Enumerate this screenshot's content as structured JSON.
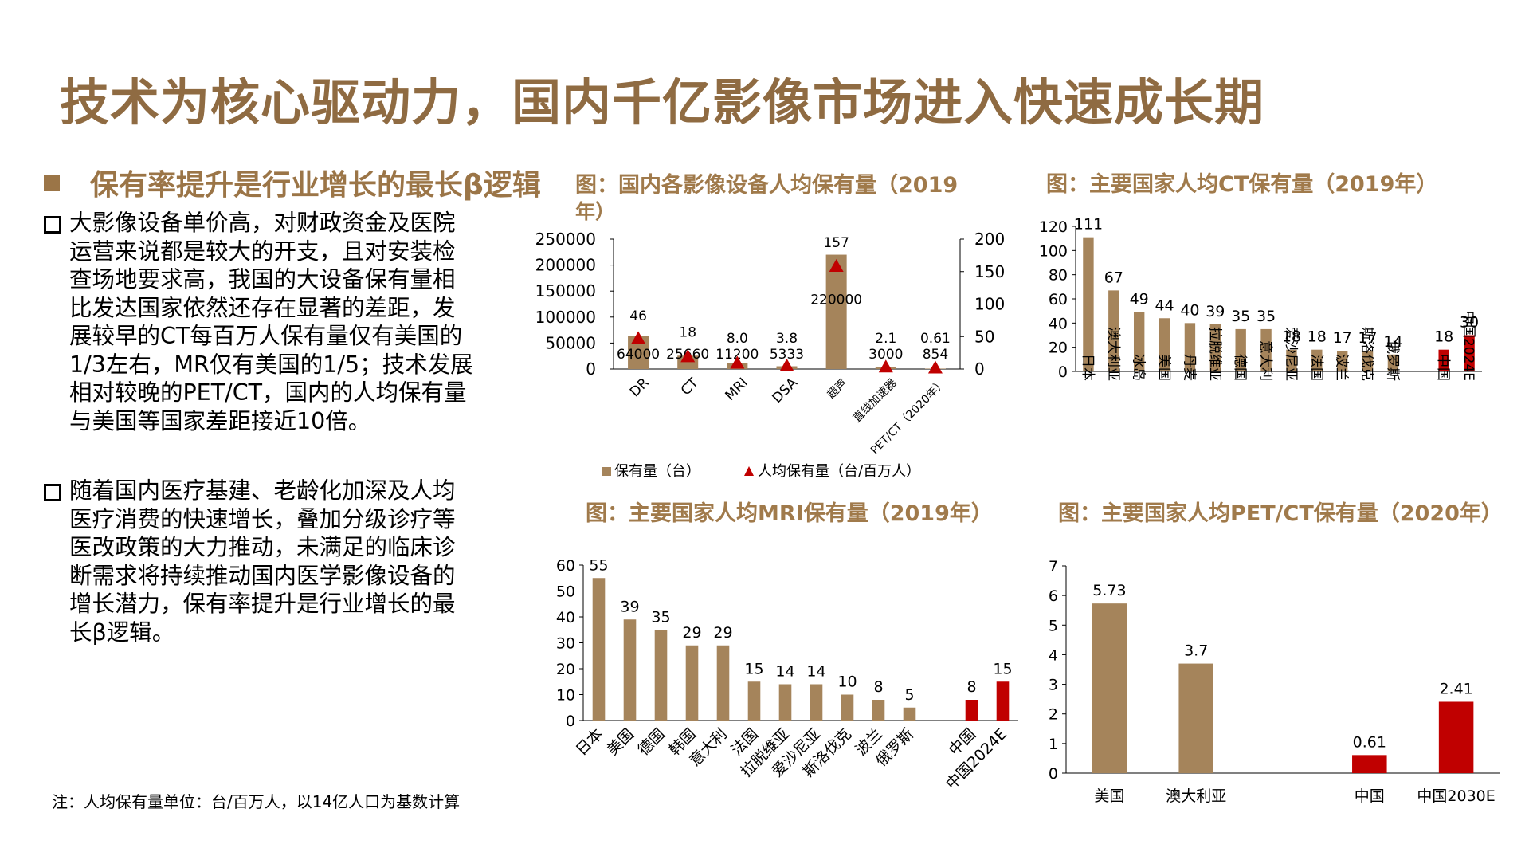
{
  "title": "技术为核心驱动力，国内千亿影像市场进入快速成长期",
  "subheading": "保有率提升是行业增长的最长β逻辑",
  "bullets": [
    "大影像设备单价高，对财政资金及医院运营来说都是较大的开支，且对安装检查场地要求高，我国的大设备保有量相比发达国家依然还存在显著的差距，发展较早的CT每百万人保有量仅有美国的1/3左右，MR仅有美国的1/5；技术发展相对较晚的PET/CT，国内的人均保有量与美国等国家差距接近10倍。",
    "随着国内医疗基建、老龄化加深及人均医疗消费的快速增长，叠加分级诊疗等医改政策的大力推动，未满足的临床诊断需求将持续推动国内医学影像设备的增长潜力，保有率提升是行业增长的最长β逻辑。"
  ],
  "note": "注：人均保有量单位：台/百万人，以14亿人口为基数计算",
  "colors": {
    "gold": "#a5845b",
    "red": "#c00000",
    "title": "#8f6b42"
  },
  "chart_data": [
    {
      "type": "bar",
      "title": "图：国内各影像设备人均保有量（2019年）",
      "categories": [
        "DR",
        "CT",
        "MRI",
        "DSA",
        "超声",
        "直线加速器",
        "PET/CT（2020年）"
      ],
      "series": [
        {
          "name": "保有量（台）",
          "type": "bar",
          "axis": "left",
          "values": [
            64000,
            25660,
            11200,
            5333,
            220000,
            3000,
            854
          ],
          "labels": [
            "64000",
            "25660",
            "11200",
            "5333",
            "220000",
            "3000",
            "854"
          ]
        },
        {
          "name": "人均保有量（台/百万人）",
          "type": "scatter",
          "marker": "triangle",
          "axis": "right",
          "values": [
            46,
            18,
            8.0,
            3.8,
            157,
            2.1,
            0.61
          ],
          "labels": [
            "46",
            "18",
            "8.0",
            "3.8",
            "157",
            "2.1",
            "0.61"
          ]
        }
      ],
      "ylim": [
        0,
        250000
      ],
      "yticks": [
        "0",
        "50000",
        "100000",
        "150000",
        "200000",
        "250000"
      ],
      "y2lim": [
        0,
        200
      ],
      "y2ticks": [
        "0",
        "50",
        "100",
        "150",
        "200"
      ],
      "legend": "bottom"
    },
    {
      "type": "bar",
      "title": "图：主要国家人均CT保有量（2019年）",
      "categories": [
        "日本",
        "澳大利亚",
        "冰岛",
        "美国",
        "丹麦",
        "拉脱维亚",
        "德国",
        "意大利",
        "爱沙尼亚",
        "法国",
        "波兰",
        "斯洛伐克",
        "俄罗斯",
        "中国",
        "中国2024E"
      ],
      "values": [
        111,
        67,
        49,
        44,
        40,
        39,
        35,
        35,
        18,
        18,
        17,
        17,
        14,
        18,
        30
      ],
      "labels": [
        "111",
        "67",
        "49",
        "44",
        "40",
        "39",
        "35",
        "35",
        "18",
        "18",
        "17",
        "17",
        "14",
        "18",
        "30"
      ],
      "highlight": [
        13,
        14
      ],
      "gap_before": 13,
      "ylim": [
        0,
        120
      ],
      "yticks": [
        "0",
        "20",
        "40",
        "60",
        "80",
        "100",
        "120"
      ]
    },
    {
      "type": "bar",
      "title": "图：主要国家人均MRI保有量（2019年）",
      "categories": [
        "日本",
        "美国",
        "德国",
        "韩国",
        "意大利",
        "法国",
        "拉脱维亚",
        "爱沙尼亚",
        "斯洛伐克",
        "波兰",
        "俄罗斯",
        "中国",
        "中国2024E"
      ],
      "values": [
        55,
        39,
        35,
        29,
        29,
        15,
        14,
        14,
        10,
        8,
        5,
        8,
        15
      ],
      "labels": [
        "55",
        "39",
        "35",
        "29",
        "29",
        "15",
        "14",
        "14",
        "10",
        "8",
        "5",
        "8",
        "15"
      ],
      "highlight": [
        11,
        12
      ],
      "gap_before": 11,
      "ylim": [
        0,
        60
      ],
      "yticks": [
        "0",
        "10",
        "20",
        "30",
        "40",
        "50",
        "60"
      ]
    },
    {
      "type": "bar",
      "title": "图：主要国家人均PET/CT保有量（2020年）",
      "categories": [
        "美国",
        "澳大利亚",
        "中国",
        "中国2030E"
      ],
      "values": [
        5.73,
        3.7,
        0.61,
        2.41
      ],
      "labels": [
        "5.73",
        "3.7",
        "0.61",
        "2.41"
      ],
      "highlight": [
        2,
        3
      ],
      "gap_before": 2,
      "ylim": [
        0,
        7
      ],
      "yticks": [
        "0",
        "1",
        "2",
        "3",
        "4",
        "5",
        "6",
        "7"
      ]
    }
  ]
}
